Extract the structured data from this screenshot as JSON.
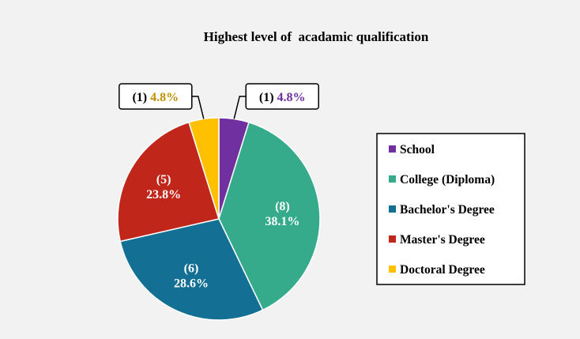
{
  "chart_data": {
    "type": "pie",
    "title": "Highest level of  acadamic qualification",
    "categories": [
      "School",
      "College (Diploma)",
      "Bachelor's Degree",
      "Master's Degree",
      "Doctoral Degree"
    ],
    "counts": [
      1,
      8,
      6,
      5,
      1
    ],
    "values": [
      4.8,
      38.1,
      28.6,
      23.8,
      4.8
    ],
    "count_labels": [
      "(1)",
      "(8)",
      "(6)",
      "(5)",
      "(1)"
    ],
    "percent_labels": [
      "4.8%",
      "38.1%",
      "28.6%",
      "23.8%",
      "4.8%"
    ],
    "colors": [
      "#7030a0",
      "#35ab8b",
      "#136f93",
      "#c0261a",
      "#ffc000"
    ],
    "callout_text_colors": [
      "#7030a0",
      null,
      null,
      null,
      "#bf9000"
    ],
    "legend_placement": "right",
    "grid": false
  }
}
